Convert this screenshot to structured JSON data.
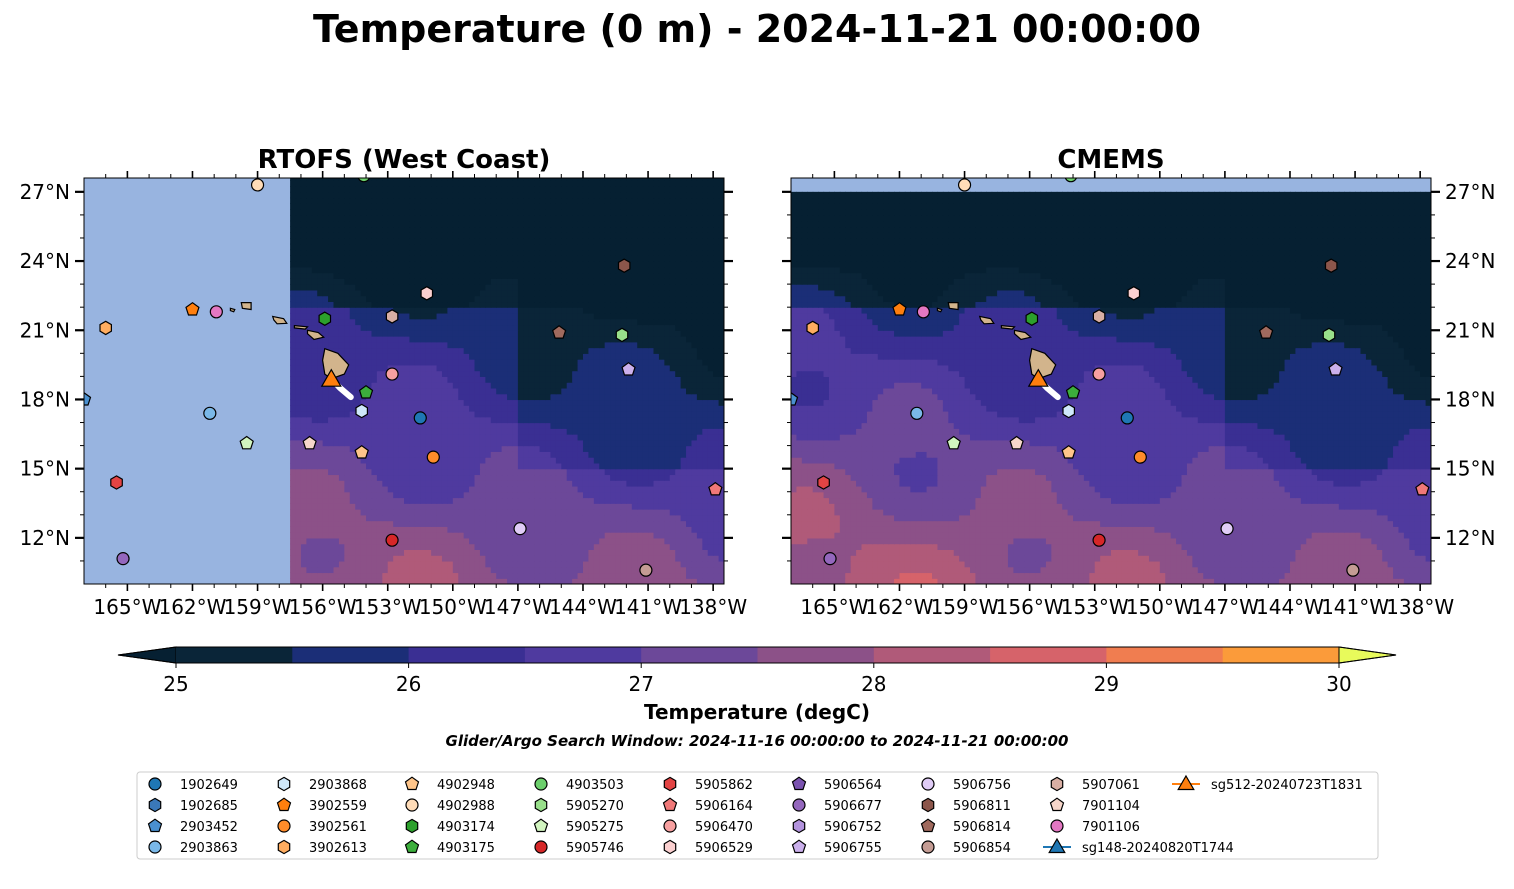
{
  "figure": {
    "title": "Temperature (0 m) - 2024-11-21 00:00:00"
  },
  "panels": [
    {
      "title": "RTOFS (West Coast)"
    },
    {
      "title": "CMEMS"
    }
  ],
  "colorbar": {
    "label": "Temperature (degC)",
    "ticks": [
      "25",
      "26",
      "27",
      "28",
      "29",
      "30"
    ],
    "min": 25,
    "max": 30,
    "step": 0.5,
    "colors": [
      "#0a2538",
      "#1b2e77",
      "#3a2f93",
      "#4f3a9f",
      "#6c4899",
      "#8c5188",
      "#b05a79",
      "#d6636a",
      "#f07d50",
      "#fb9b3a",
      "#f8c440"
    ],
    "under_color": "#062032",
    "over_color": "#e8fa5b"
  },
  "subtitle": "Glider/Argo Search Window: 2024-11-16 00:00:00 to 2024-11-21 00:00:00",
  "chart_data": {
    "type": "map",
    "projection": "PlateCarree",
    "lon_range": [
      -167,
      -137.5
    ],
    "lat_range": [
      10,
      27.6
    ],
    "xticks": [
      "165°W",
      "162°W",
      "159°W",
      "156°W",
      "153°W",
      "150°W",
      "147°W",
      "144°W",
      "141°W",
      "138°W"
    ],
    "xtick_values": [
      -165,
      -162,
      -159,
      -156,
      -153,
      -150,
      -147,
      -144,
      -141,
      -138
    ],
    "yticks": [
      "12°N",
      "15°N",
      "18°N",
      "21°N",
      "24°N",
      "27°N"
    ],
    "ytick_values": [
      12,
      15,
      18,
      21,
      24,
      27
    ],
    "rtofs_valid_lon_min": -157.7,
    "cmems_valid_lat_max": 27.0,
    "fill_color": "#98b4e0",
    "land_color": "#d2b48c",
    "gliders": [
      {
        "name": "sg148-20240820T1744",
        "color": "#1f77b4",
        "track": []
      },
      {
        "name": "sg512-20240723T1831",
        "color": "#ff7f0e",
        "track": [
          [
            -155.6,
            18.9
          ],
          [
            -155.2,
            18.5
          ],
          [
            -154.7,
            18.1
          ]
        ]
      }
    ],
    "floats": [
      {
        "id": "1902649",
        "marker": "circle",
        "color": "#1f77b4",
        "lon": -151.5,
        "lat": 17.2
      },
      {
        "id": "1902685",
        "marker": "hexagon",
        "color": "#3a78b8",
        "lon": null,
        "lat": null
      },
      {
        "id": "2903452",
        "marker": "pentagon",
        "color": "#4a90d0",
        "lon": -167.0,
        "lat": 18.0
      },
      {
        "id": "2903863",
        "marker": "circle",
        "color": "#7ab8e8",
        "lon": -161.2,
        "lat": 17.4
      },
      {
        "id": "2903868",
        "marker": "hexagon",
        "color": "#cfe8fa",
        "lon": -154.2,
        "lat": 17.5
      },
      {
        "id": "3902559",
        "marker": "pentagon",
        "color": "#ff7f0e",
        "lon": -162.0,
        "lat": 21.9
      },
      {
        "id": "3902561",
        "marker": "circle",
        "color": "#ff8c2a",
        "lon": -150.9,
        "lat": 15.5
      },
      {
        "id": "3902613",
        "marker": "hexagon",
        "color": "#ffad60",
        "lon": -166.0,
        "lat": 21.1
      },
      {
        "id": "4902948",
        "marker": "pentagon",
        "color": "#ffc58a",
        "lon": -154.2,
        "lat": 15.7
      },
      {
        "id": "4902988",
        "marker": "circle",
        "color": "#ffdcb8",
        "lon": -159.0,
        "lat": 27.3
      },
      {
        "id": "4903174",
        "marker": "hexagon",
        "color": "#2ca02c",
        "lon": -155.9,
        "lat": 21.5
      },
      {
        "id": "4903175",
        "marker": "pentagon",
        "color": "#3cae3c",
        "lon": -154.0,
        "lat": 18.3
      },
      {
        "id": "4903503",
        "marker": "circle",
        "color": "#6ccf6c",
        "lon": -154.1,
        "lat": 27.7
      },
      {
        "id": "5905270",
        "marker": "hexagon",
        "color": "#98df8a",
        "lon": -142.2,
        "lat": 20.8
      },
      {
        "id": "5905275",
        "marker": "pentagon",
        "color": "#d2f5c0",
        "lon": -159.5,
        "lat": 16.1
      },
      {
        "id": "5905746",
        "marker": "circle",
        "color": "#d62728",
        "lon": -152.8,
        "lat": 11.9
      },
      {
        "id": "5905862",
        "marker": "hexagon",
        "color": "#e34444",
        "lon": -165.5,
        "lat": 14.4
      },
      {
        "id": "5906164",
        "marker": "pentagon",
        "color": "#f07878",
        "lon": -137.9,
        "lat": 14.1
      },
      {
        "id": "5906470",
        "marker": "circle",
        "color": "#f7a0a0",
        "lon": -152.8,
        "lat": 19.1
      },
      {
        "id": "5906529",
        "marker": "hexagon",
        "color": "#fbd0d0",
        "lon": -151.2,
        "lat": 22.6
      },
      {
        "id": "5906564",
        "marker": "pentagon",
        "color": "#7b53b0",
        "lon": null,
        "lat": null
      },
      {
        "id": "5906677",
        "marker": "circle",
        "color": "#9467bd",
        "lon": -165.2,
        "lat": 11.1
      },
      {
        "id": "5906752",
        "marker": "hexagon",
        "color": "#b393dd",
        "lon": null,
        "lat": null
      },
      {
        "id": "5906755",
        "marker": "pentagon",
        "color": "#cbb0ec",
        "lon": -141.9,
        "lat": 19.3
      },
      {
        "id": "5906756",
        "marker": "circle",
        "color": "#e0ccf6",
        "lon": -146.9,
        "lat": 12.4
      },
      {
        "id": "5906811",
        "marker": "hexagon",
        "color": "#8c564b",
        "lon": -142.1,
        "lat": 23.8
      },
      {
        "id": "5906814",
        "marker": "pentagon",
        "color": "#a06a5e",
        "lon": -145.1,
        "lat": 20.9
      },
      {
        "id": "5906854",
        "marker": "circle",
        "color": "#c49c94",
        "lon": -141.1,
        "lat": 10.6
      },
      {
        "id": "5907061",
        "marker": "hexagon",
        "color": "#d9afa4",
        "lon": -152.8,
        "lat": 21.6
      },
      {
        "id": "7901104",
        "marker": "pentagon",
        "color": "#f7d6ca",
        "lon": -156.6,
        "lat": 16.1
      },
      {
        "id": "7901106",
        "marker": "circle",
        "color": "#e377c2",
        "lon": -160.9,
        "lat": 21.8
      }
    ]
  }
}
